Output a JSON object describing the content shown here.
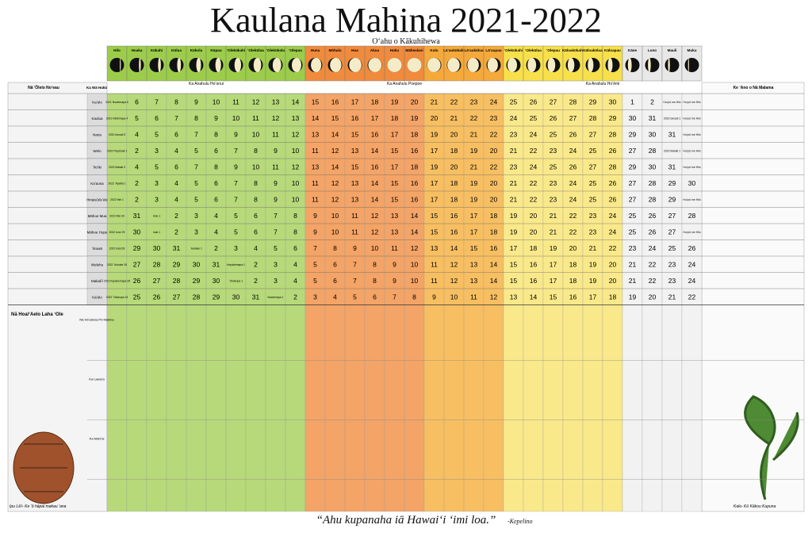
{
  "header": {
    "title": "Kaulana Mahina 2021-2022",
    "subtitle": "Oʻahu o Kākuhihewa"
  },
  "groups": [
    "Ka Anahulu Hoʻonui",
    "Ka Anahulu Poepoe",
    "Ka Anahulu Hoʻēmi"
  ],
  "calendar": {
    "left_header": "Nā ʻŌlelo Noʻeau",
    "month_header": "Ka Wā Hakū",
    "right_header": "Ke ʻAno o Nā Malama",
    "phases": [
      "Hilo",
      "Hoaka",
      "Kūkahi",
      "Kūlua",
      "Kūkolu",
      "Kūpau",
      "ʻOlekūkahi",
      "ʻOlekūlua",
      "ʻOlekūkolu",
      "ʻOlepau",
      "Huna",
      "Mōhalu",
      "Hua",
      "Akua",
      "Hoku",
      "Māhealani",
      "Kulu",
      "Lāʻaukūkahi",
      "Lāʻaukūlua",
      "Lāʻaupau",
      "ʻOlekūkahi",
      "ʻOlekūlua",
      "ʻOlepau",
      "Kāloakūkahi",
      "Kāloakūlua",
      "Kāloapau",
      "Kāne",
      "Lono",
      "Mauli",
      "Muku"
    ],
    "rows": [
      {
        "month": "Kaʻelo",
        "days": [
          "2021 Nowemapa 5",
          "6",
          "7",
          "8",
          "9",
          "10",
          "11",
          "12",
          "13",
          "14",
          "15",
          "16",
          "17",
          "18",
          "19",
          "20",
          "21",
          "22",
          "23",
          "24",
          "25",
          "26",
          "27",
          "28",
          "29",
          "30",
          "1",
          "2",
          "Hui pū me Hilo",
          "Hui pū me Hilo"
        ]
      },
      {
        "month": "Kaulua",
        "days": [
          "2021 Kēkēmapa 4",
          "5",
          "6",
          "7",
          "8",
          "9",
          "10",
          "11",
          "12",
          "13",
          "14",
          "15",
          "16",
          "17",
          "18",
          "19",
          "20",
          "21",
          "22",
          "23",
          "24",
          "25",
          "26",
          "27",
          "28",
          "29",
          "30",
          "31",
          "2022 Ianuali 1",
          "Hui pū me Hilo"
        ]
      },
      {
        "month": "Nana",
        "days": [
          "2022 Ianuali 3",
          "4",
          "5",
          "6",
          "7",
          "8",
          "9",
          "10",
          "11",
          "12",
          "13",
          "14",
          "15",
          "16",
          "17",
          "18",
          "19",
          "20",
          "21",
          "22",
          "23",
          "24",
          "25",
          "26",
          "27",
          "28",
          "29",
          "30",
          "31",
          "Hui pū me Hilo"
        ]
      },
      {
        "month": "Welo",
        "days": [
          "2022 Pepeluali 1",
          "2",
          "3",
          "4",
          "5",
          "6",
          "7",
          "8",
          "9",
          "10",
          "11",
          "12",
          "13",
          "14",
          "15",
          "16",
          "17",
          "18",
          "19",
          "20",
          "21",
          "22",
          "23",
          "24",
          "25",
          "26",
          "27",
          "28",
          "2022 Malaki 1",
          "Hui pū me Hilo"
        ]
      },
      {
        "month": "ʻIkiʻiki",
        "days": [
          "2022 Malaki 3",
          "4",
          "5",
          "6",
          "7",
          "8",
          "9",
          "10",
          "11",
          "12",
          "13",
          "14",
          "15",
          "16",
          "17",
          "18",
          "19",
          "20",
          "21",
          "22",
          "23",
          "24",
          "25",
          "26",
          "27",
          "28",
          "29",
          "30",
          "31",
          "Hui pū me Hilo"
        ]
      },
      {
        "month": "Kaʻaona",
        "days": [
          "2022 ʻApelila 1",
          "2",
          "3",
          "4",
          "5",
          "6",
          "7",
          "8",
          "9",
          "10",
          "11",
          "12",
          "13",
          "14",
          "15",
          "16",
          "17",
          "18",
          "19",
          "20",
          "21",
          "22",
          "23",
          "24",
          "25",
          "26",
          "27",
          "28",
          "29",
          "30"
        ]
      },
      {
        "month": "Hinaiaʻeleʻele",
        "days": [
          "2022 Mei 1",
          "2",
          "3",
          "4",
          "5",
          "6",
          "7",
          "8",
          "9",
          "10",
          "11",
          "12",
          "13",
          "14",
          "15",
          "16",
          "17",
          "18",
          "19",
          "20",
          "21",
          "22",
          "23",
          "24",
          "25",
          "26",
          "27",
          "28",
          "29",
          "Hui pū me Hilo"
        ]
      },
      {
        "month": "Māhoe Mua",
        "days": [
          "2022 Mei 30",
          "31",
          "Iune 1",
          "2",
          "3",
          "4",
          "5",
          "6",
          "7",
          "8",
          "9",
          "10",
          "11",
          "12",
          "13",
          "14",
          "15",
          "16",
          "17",
          "18",
          "19",
          "20",
          "21",
          "22",
          "23",
          "24",
          "25",
          "26",
          "27",
          "28"
        ]
      },
      {
        "month": "Māhoe Hope",
        "days": [
          "2022 Iune 29",
          "30",
          "Iulai 1",
          "2",
          "3",
          "4",
          "5",
          "6",
          "7",
          "8",
          "9",
          "10",
          "11",
          "12",
          "13",
          "14",
          "15",
          "16",
          "17",
          "18",
          "19",
          "20",
          "21",
          "22",
          "23",
          "24",
          "25",
          "26",
          "27",
          "Hui pū me Hilo"
        ]
      },
      {
        "month": "ʻIkuwā",
        "days": [
          "2022 Iulai 28",
          "29",
          "30",
          "31",
          "ʻAukake 1",
          "2",
          "3",
          "4",
          "5",
          "6",
          "7",
          "8",
          "9",
          "10",
          "11",
          "12",
          "13",
          "14",
          "15",
          "16",
          "17",
          "18",
          "19",
          "20",
          "21",
          "22",
          "23",
          "24",
          "25",
          "26"
        ]
      },
      {
        "month": "Welehu",
        "days": [
          "2022 ʻAukake 26",
          "27",
          "28",
          "29",
          "30",
          "31",
          "Kepakemapa 1",
          "2",
          "3",
          "4",
          "5",
          "6",
          "7",
          "8",
          "9",
          "10",
          "11",
          "12",
          "13",
          "14",
          "15",
          "16",
          "17",
          "18",
          "19",
          "20",
          "21",
          "22",
          "23",
          "24"
        ]
      },
      {
        "month": "Makaliʻi",
        "days": [
          "2022 Kepakemapa 25",
          "26",
          "27",
          "28",
          "29",
          "30",
          "ʻOkakopa 1",
          "2",
          "3",
          "4",
          "5",
          "6",
          "7",
          "8",
          "9",
          "10",
          "11",
          "12",
          "13",
          "14",
          "15",
          "16",
          "17",
          "18",
          "19",
          "20",
          "21",
          "22",
          "23",
          "24"
        ]
      },
      {
        "month": "Kāʻelo",
        "days": [
          "2022 ʻOkakopa 24",
          "25",
          "26",
          "27",
          "28",
          "29",
          "30",
          "31",
          "Nowemapa 1",
          "2",
          "3",
          "4",
          "5",
          "6",
          "7",
          "8",
          "9",
          "10",
          "11",
          "12",
          "13",
          "14",
          "15",
          "16",
          "17",
          "18",
          "19",
          "20",
          "21",
          "22"
        ]
      }
    ]
  },
  "lower": {
    "list_title": "Nā Hoa/ʻAelo Laha ʻOle",
    "row_labels": [
      "Nā Hōʻailona Pō Mahina",
      "Ka Lawaiʻa",
      "Ka Mahiʻai"
    ]
  },
  "footer": {
    "quote": "“Ahu kupanaha iā Hawaiʻi ʻimi loa.”",
    "author": "-Kepelino",
    "left_caption": "Ipu Lāʻi- Ke ʻō hāpai makau ʻana",
    "right_caption": "Kalo- Kū Kākou Kupuna"
  }
}
